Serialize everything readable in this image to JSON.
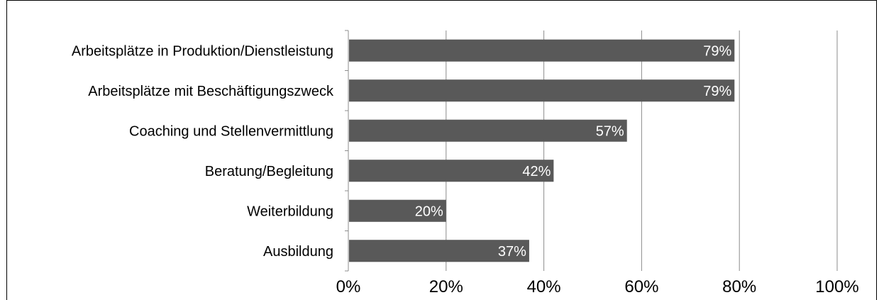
{
  "chart_data": {
    "type": "bar",
    "orientation": "horizontal",
    "title": "",
    "xlabel": "",
    "ylabel": "",
    "categories": [
      "Arbeitsplätze in Produktion/Dienstleistung",
      "Arbeitsplätze mit Beschäftigungszweck",
      "Coaching und Stellenvermittlung",
      "Beratung/Begleitung",
      "Weiterbildung",
      "Ausbildung"
    ],
    "values": [
      79,
      79,
      57,
      42,
      20,
      37
    ],
    "data_labels": [
      "79%",
      "79%",
      "57%",
      "42%",
      "20%",
      "37%"
    ],
    "xlim": [
      0,
      100
    ],
    "x_ticks": [
      0,
      20,
      40,
      60,
      80,
      100
    ],
    "x_tick_labels": [
      "0%",
      "20%",
      "40%",
      "60%",
      "80%",
      "100%"
    ],
    "grid": "vertical",
    "legend": "none",
    "bar_color": "#595959",
    "gridline_color": "#8c8c8c",
    "data_label_color": "#ffffff"
  }
}
